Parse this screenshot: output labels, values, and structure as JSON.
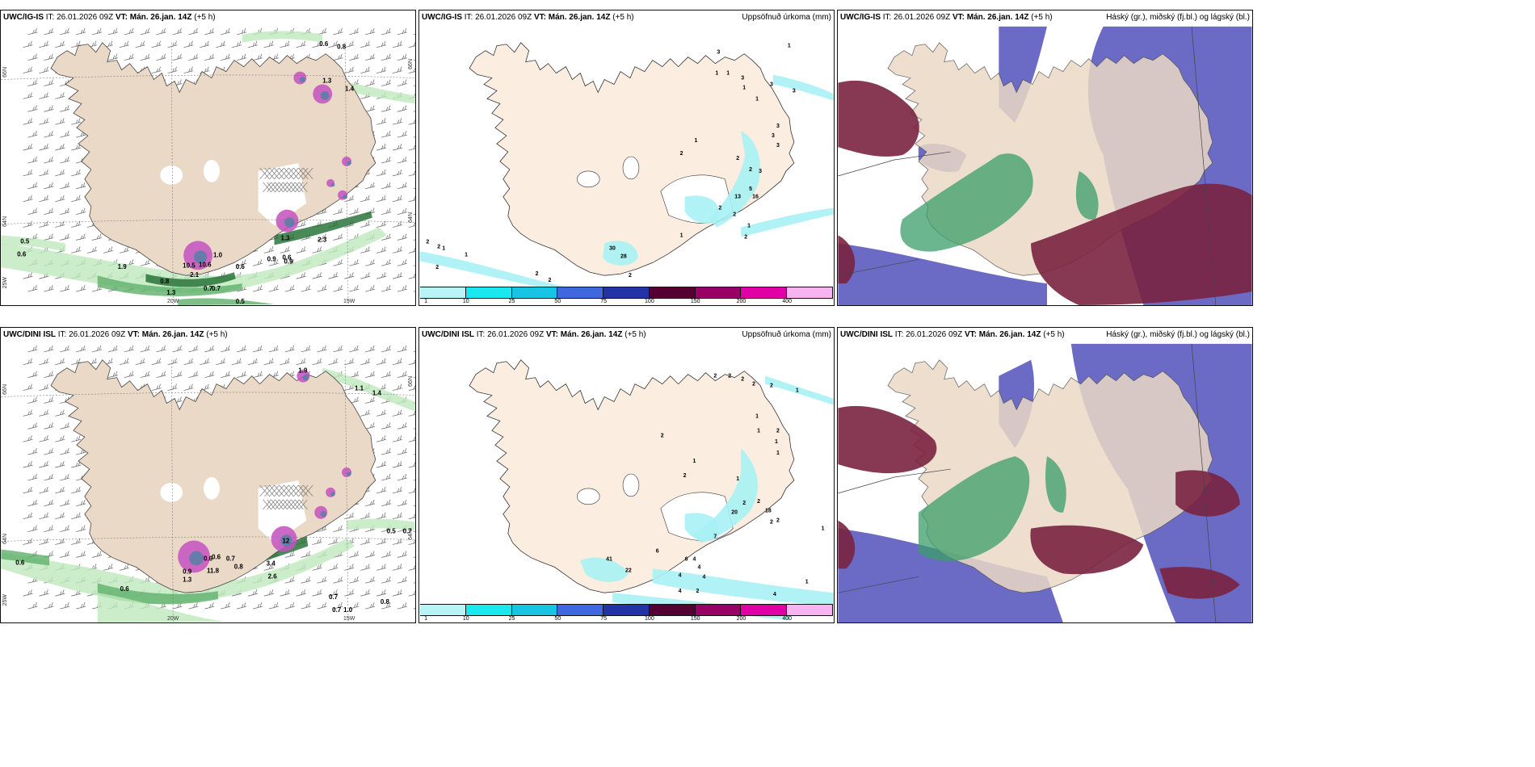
{
  "panels": [
    {
      "id": "p1",
      "model": "UWC/IG-IS",
      "it_label": "IT:",
      "it_value": "26.01.2026 09Z",
      "vt_label": "VT:",
      "vt_value": "Mán. 26.jan. 14Z",
      "lead": "(+5 h)",
      "right_title": "",
      "type": "wind",
      "lat_labels": [
        "66N",
        "64N"
      ],
      "lat_labels_right": [
        "66N",
        "64N"
      ],
      "lon_labels": [
        "20W",
        "15W"
      ],
      "corner_label": "25W",
      "values": [
        "0.6",
        "0.8",
        "1.3",
        "1.4",
        "0.5",
        "0.6",
        "1.9",
        "0.8",
        "1.3",
        "2.1",
        "0.7",
        "0.7",
        "0.5",
        "0.6",
        "0.9",
        "0.6",
        "1.3",
        "1.0",
        "10.6",
        "10.5",
        "0.9",
        "2.3"
      ]
    },
    {
      "id": "p2",
      "model": "UWC/IG-IS",
      "it_label": "IT:",
      "it_value": "26.01.2026 09Z",
      "vt_label": "VT:",
      "vt_value": "Mán. 26.jan. 14Z",
      "lead": "(+5 h)",
      "right_title": "Uppsöfnuð úrkoma (mm)",
      "type": "precip",
      "values": [
        "1",
        "3",
        "1",
        "1",
        "3",
        "1",
        "3",
        "3",
        "1",
        "3",
        "3",
        "3",
        "1",
        "2",
        "2",
        "2",
        "3",
        "5",
        "16",
        "13",
        "2",
        "2",
        "1",
        "2",
        "1",
        "2",
        "2",
        "1",
        "1",
        "2",
        "2",
        "2",
        "2",
        "30",
        "28"
      ]
    },
    {
      "id": "p3",
      "model": "UWC/IG-IS",
      "it_label": "IT:",
      "it_value": "26.01.2026 09Z",
      "vt_label": "VT:",
      "vt_value": "Mán. 26.jan. 14Z",
      "lead": "(+5 h)",
      "right_title": "Háský (gr.), miðský (fj.bl.) og lágský (bl.)",
      "type": "cloud"
    },
    {
      "id": "p4",
      "model": "UWC/DINI ISL",
      "it_label": "IT:",
      "it_value": "26.01.2026 09Z",
      "vt_label": "VT:",
      "vt_value": "Mán. 26.jan. 14Z",
      "lead": "(+5 h)",
      "right_title": "",
      "type": "wind",
      "lat_labels": [
        "66N",
        "64N"
      ],
      "lat_labels_right": [
        "66N",
        "64N"
      ],
      "lon_labels": [
        "20W",
        "15W"
      ],
      "corner_label": "25W",
      "values": [
        "1.9",
        "1.1",
        "1.4",
        "0.5",
        "0.7",
        "0.6",
        "0.6",
        "0.8",
        "3.4",
        "2.6",
        "1.0",
        "0.7",
        "0.7",
        "0.8",
        "12",
        "11.8",
        "0.9",
        "1.3",
        "0.6",
        "0.6",
        "0.7"
      ]
    },
    {
      "id": "p5",
      "model": "UWC/DINI ISL",
      "it_label": "IT:",
      "it_value": "26.01.2026 09Z",
      "vt_label": "VT:",
      "vt_value": "Mán. 26.jan. 14Z",
      "lead": "(+5 h)",
      "right_title": "Uppsöfnuð úrkoma (mm)",
      "type": "precip",
      "values": [
        "2",
        "2",
        "2",
        "2",
        "2",
        "1",
        "1",
        "1",
        "2",
        "1",
        "1",
        "2",
        "1",
        "2",
        "1",
        "2",
        "2",
        "20",
        "18",
        "7",
        "2",
        "2",
        "1",
        "6",
        "6",
        "4",
        "4",
        "4",
        "4",
        "4",
        "2",
        "4",
        "1",
        "22",
        "41"
      ]
    },
    {
      "id": "p6",
      "model": "UWC/DINI ISL",
      "it_label": "IT:",
      "it_value": "26.01.2026 09Z",
      "vt_label": "VT:",
      "vt_value": "Mán. 26.jan. 14Z",
      "lead": "(+5 h)",
      "right_title": "Háský (gr.), miðský (fj.bl.) og lágský (bl.)",
      "type": "cloud"
    }
  ],
  "colorbar": {
    "labels": [
      "1",
      "10",
      "25",
      "50",
      "75",
      "100",
      "150",
      "200",
      "400"
    ],
    "colors": [
      "#b8f4f6",
      "#19e8ee",
      "#18c4e4",
      "#3f67e0",
      "#2233a6",
      "#550033",
      "#990066",
      "#e000a6",
      "#f7b4f0"
    ]
  },
  "colors": {
    "land": "#ead9c6",
    "land_precip": "#fbeee1",
    "wind_green_light": "#bfe9bd",
    "wind_green_mid": "#5fb06a",
    "wind_green_dark": "#1d6b2e",
    "magenta": "#c450c0",
    "cyan": "#a7f1f4",
    "cloud_low": "#5b5bbf",
    "cloud_mid": "#7a2240",
    "cloud_high": "#3a9d6a"
  }
}
